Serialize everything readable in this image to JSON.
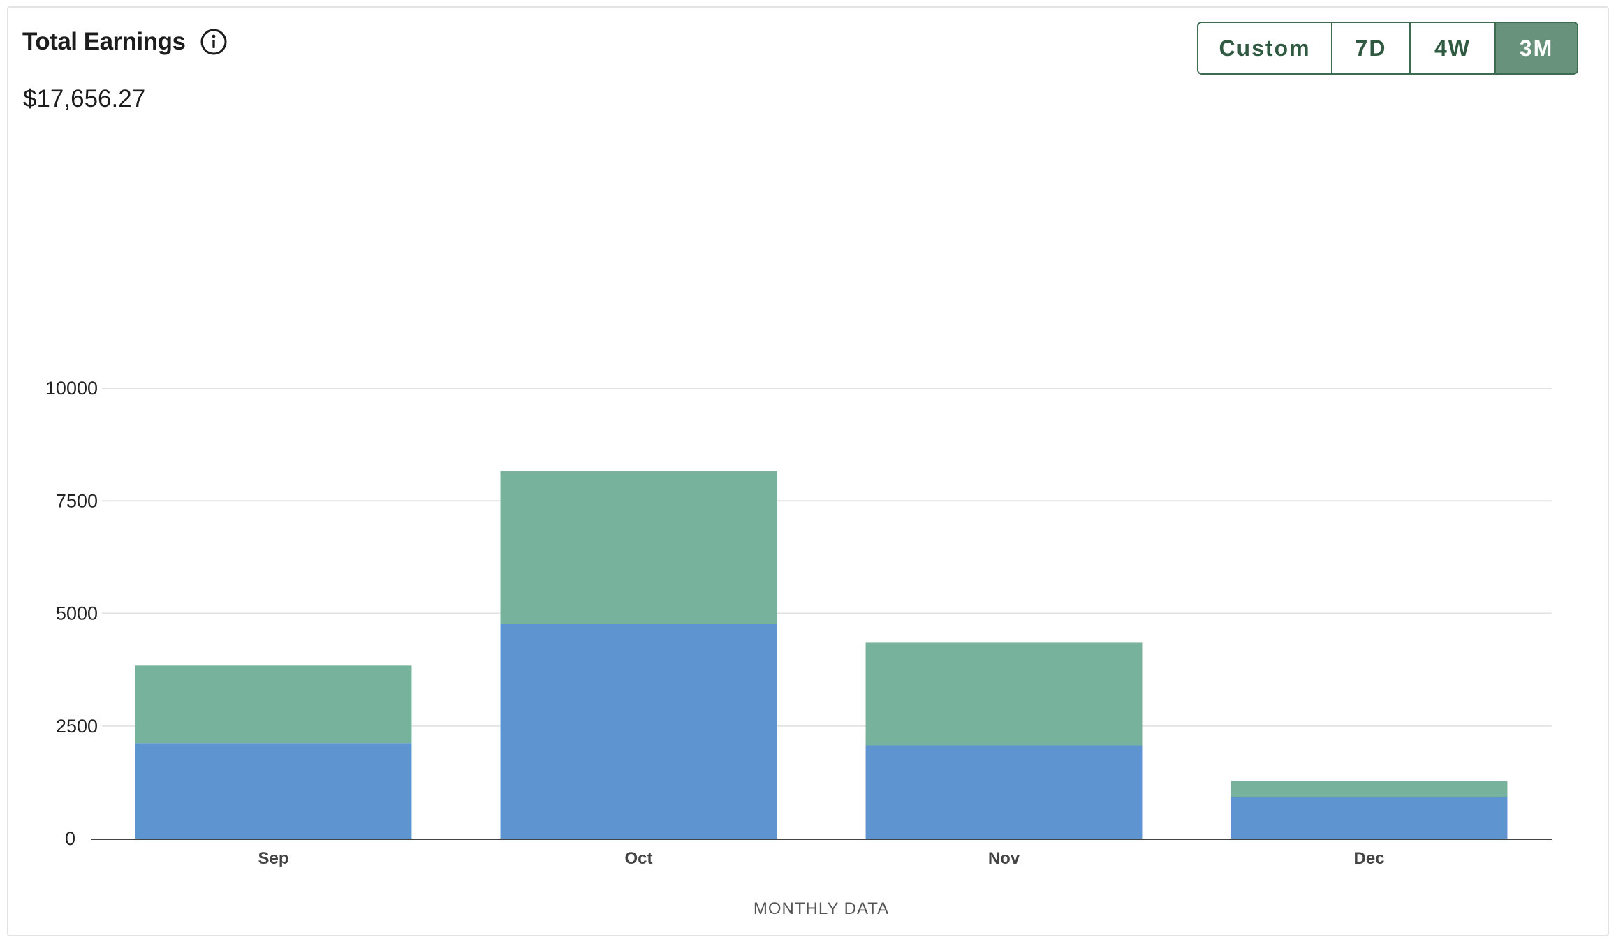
{
  "header": {
    "title": "Total Earnings",
    "info_icon": "info-icon",
    "total": "$17,656.27"
  },
  "range_selector": {
    "options": [
      "Custom",
      "7D",
      "4W",
      "3M"
    ],
    "selected": "3M"
  },
  "colors": {
    "series_bottom": "#5e95d1",
    "series_top": "#77b39c",
    "accent": "#3e6a50",
    "accent_fill": "#69927c",
    "grid": "#e2e2e2",
    "axis": "#444444"
  },
  "chart_data": {
    "type": "bar",
    "stacked": true,
    "categories": [
      "Sep",
      "Oct",
      "Nov",
      "Dec"
    ],
    "series": [
      {
        "values": [
          2120,
          4770,
          2070,
          930
        ]
      },
      {
        "values": [
          1720,
          3400,
          2280,
          350
        ]
      }
    ],
    "yticks": [
      0,
      2500,
      5000,
      7500,
      10000
    ],
    "ylim": [
      0,
      10000
    ],
    "xlabel": "MONTHLY DATA",
    "ylabel": "",
    "grid": true,
    "legend": "none"
  }
}
